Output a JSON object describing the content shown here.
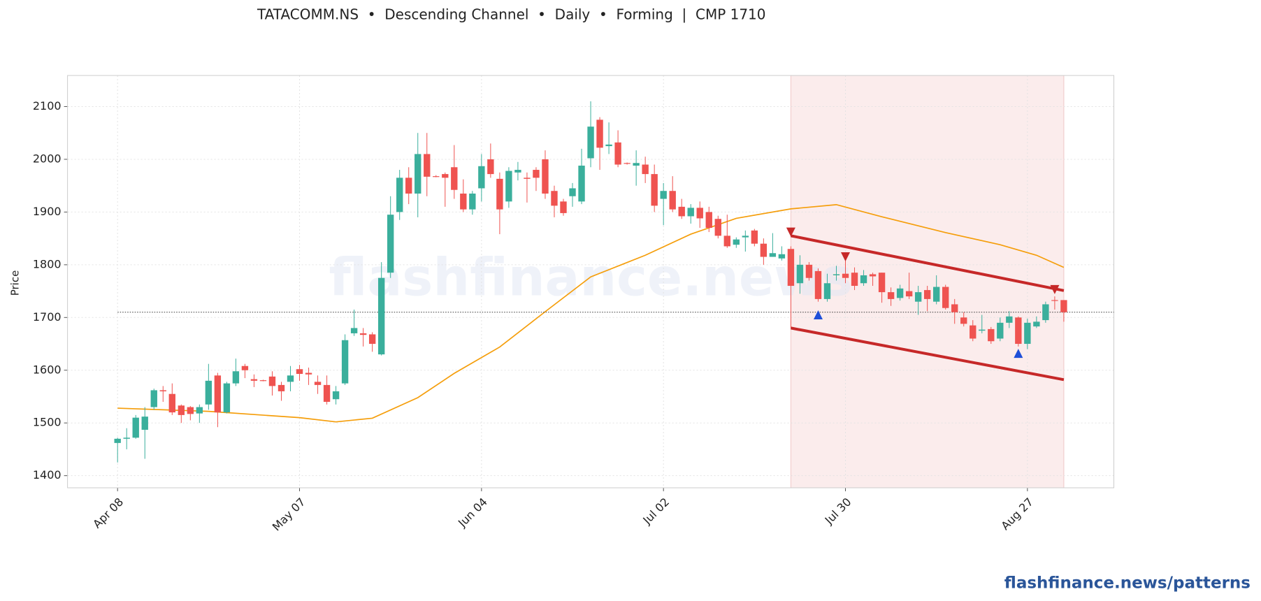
{
  "chart_data": {
    "type": "candlestick",
    "title": "TATACOMM.NS  •  Descending Channel  •  Daily  •  Forming  |  CMP 1710",
    "ylabel": "Price",
    "watermark": "flashfinance.news",
    "footer": "flashfinance.news/patterns",
    "up_color": "#3aaf9c",
    "down_color": "#ef5350",
    "grid": true,
    "xlim": [
      -5.5,
      109.5
    ],
    "ylim": [
      1377,
      2159
    ],
    "yticks": [
      1400,
      1500,
      1600,
      1700,
      1800,
      1900,
      2000,
      2100
    ],
    "xticks": [
      {
        "value": 0,
        "label": "Apr 08"
      },
      {
        "value": 20,
        "label": "May 07"
      },
      {
        "value": 40,
        "label": "Jun 04"
      },
      {
        "value": 60,
        "label": "Jul 02"
      },
      {
        "value": 80,
        "label": "Jul 30"
      },
      {
        "value": 100,
        "label": "Aug 27"
      }
    ],
    "ohlc": {
      "open": [
        1462,
        1470,
        1472,
        1487,
        1530,
        1562,
        1555,
        1533,
        1530,
        1518,
        1535,
        1590,
        1520,
        1575,
        1608,
        1583,
        1581,
        1588,
        1572,
        1578,
        1602,
        1595,
        1578,
        1572,
        1545,
        1575,
        1670,
        1670,
        1668,
        1630,
        1785,
        1900,
        1965,
        1935,
        2010,
        1968,
        1972,
        1985,
        1935,
        1905,
        1945,
        2000,
        1963,
        1920,
        1975,
        1965,
        1980,
        2000,
        1940,
        1920,
        1930,
        1920,
        2002,
        2075,
        2025,
        2032,
        1993,
        1988,
        1990,
        1972,
        1925,
        1940,
        1910,
        1892,
        1908,
        1900,
        1887,
        1855,
        1838,
        1852,
        1865,
        1840,
        1815,
        1812,
        1830,
        1765,
        1800,
        1788,
        1735,
        1780,
        1783,
        1785,
        1765,
        1782,
        1785,
        1748,
        1737,
        1750,
        1730,
        1752,
        1730,
        1758,
        1725,
        1700,
        1685,
        1675,
        1678,
        1660,
        1690,
        1700,
        1650,
        1683,
        1695,
        1733,
        1733
      ],
      "high": [
        1472,
        1490,
        1515,
        1530,
        1565,
        1570,
        1575,
        1535,
        1532,
        1535,
        1612,
        1595,
        1578,
        1622,
        1612,
        1592,
        1582,
        1598,
        1578,
        1608,
        1610,
        1605,
        1590,
        1590,
        1570,
        1668,
        1715,
        1680,
        1672,
        1805,
        1930,
        1980,
        1985,
        2050,
        2050,
        1970,
        1975,
        2027,
        1962,
        1940,
        2010,
        2030,
        1975,
        1985,
        1995,
        1975,
        1985,
        2017,
        1950,
        1925,
        1955,
        2020,
        2110,
        2080,
        2070,
        2055,
        1994,
        2017,
        2005,
        1990,
        1955,
        1968,
        1925,
        1915,
        1920,
        1910,
        1893,
        1895,
        1852,
        1865,
        1868,
        1850,
        1860,
        1835,
        1835,
        1818,
        1805,
        1793,
        1783,
        1798,
        1810,
        1795,
        1790,
        1785,
        1785,
        1757,
        1762,
        1785,
        1760,
        1760,
        1780,
        1762,
        1735,
        1710,
        1695,
        1705,
        1682,
        1700,
        1712,
        1702,
        1698,
        1702,
        1730,
        1740,
        1733
      ],
      "low": [
        1425,
        1450,
        1470,
        1432,
        1525,
        1540,
        1515,
        1500,
        1505,
        1500,
        1525,
        1492,
        1518,
        1570,
        1585,
        1568,
        1579,
        1552,
        1542,
        1560,
        1580,
        1572,
        1555,
        1535,
        1535,
        1572,
        1665,
        1645,
        1635,
        1628,
        1775,
        1885,
        1915,
        1890,
        1930,
        1966,
        1910,
        1925,
        1900,
        1895,
        1920,
        1965,
        1858,
        1908,
        1960,
        1918,
        1940,
        1925,
        1890,
        1893,
        1910,
        1915,
        1985,
        1980,
        2010,
        1985,
        1990,
        1950,
        1955,
        1900,
        1875,
        1900,
        1887,
        1878,
        1870,
        1862,
        1850,
        1832,
        1832,
        1825,
        1835,
        1800,
        1815,
        1808,
        1680,
        1745,
        1770,
        1730,
        1730,
        1770,
        1765,
        1752,
        1760,
        1760,
        1728,
        1722,
        1732,
        1735,
        1705,
        1712,
        1725,
        1715,
        1688,
        1683,
        1655,
        1670,
        1650,
        1655,
        1680,
        1645,
        1640,
        1680,
        1690,
        1715,
        1692
      ],
      "close": [
        1470,
        1472,
        1510,
        1512,
        1562,
        1560,
        1520,
        1515,
        1517,
        1530,
        1580,
        1520,
        1575,
        1598,
        1600,
        1580,
        1580,
        1570,
        1560,
        1590,
        1593,
        1592,
        1572,
        1540,
        1560,
        1657,
        1680,
        1667,
        1650,
        1775,
        1895,
        1965,
        1935,
        2010,
        1967,
        1967,
        1965,
        1942,
        1905,
        1935,
        1987,
        1972,
        1905,
        1978,
        1980,
        1963,
        1965,
        1935,
        1912,
        1898,
        1945,
        1988,
        2062,
        2022,
        2028,
        1990,
        1992,
        1993,
        1972,
        1912,
        1940,
        1905,
        1892,
        1908,
        1888,
        1870,
        1855,
        1835,
        1848,
        1855,
        1840,
        1815,
        1822,
        1820,
        1760,
        1800,
        1775,
        1735,
        1765,
        1782,
        1775,
        1760,
        1780,
        1778,
        1748,
        1735,
        1755,
        1740,
        1748,
        1735,
        1758,
        1718,
        1710,
        1688,
        1660,
        1677,
        1655,
        1690,
        1702,
        1650,
        1690,
        1692,
        1725,
        1732,
        1710
      ]
    },
    "ma": {
      "color": "#f59e0b",
      "x": [
        0,
        10,
        20,
        24,
        28,
        33,
        37,
        42,
        47,
        52,
        58,
        63,
        68,
        74,
        79,
        84,
        91,
        97,
        101,
        104
      ],
      "values": [
        1528,
        1522,
        1510,
        1502,
        1509,
        1548,
        1594,
        1644,
        1711,
        1777,
        1818,
        1858,
        1888,
        1906,
        1914,
        1891,
        1861,
        1838,
        1818,
        1795
      ]
    },
    "cmp": 1710,
    "highlight": [
      74,
      104
    ],
    "channel": {
      "color": "#c62828",
      "upper": {
        "x": [
          74,
          104
        ],
        "values": [
          1855,
          1751
        ]
      },
      "lower": {
        "x": [
          74,
          104
        ],
        "values": [
          1680,
          1582
        ]
      }
    },
    "peaks": {
      "color": "#c62828",
      "x": [
        74,
        80,
        103
      ],
      "values": [
        1862,
        1815,
        1753
      ]
    },
    "troughs": {
      "color": "#1e4fd8",
      "x": [
        77,
        99
      ],
      "values": [
        1705,
        1632
      ]
    }
  }
}
